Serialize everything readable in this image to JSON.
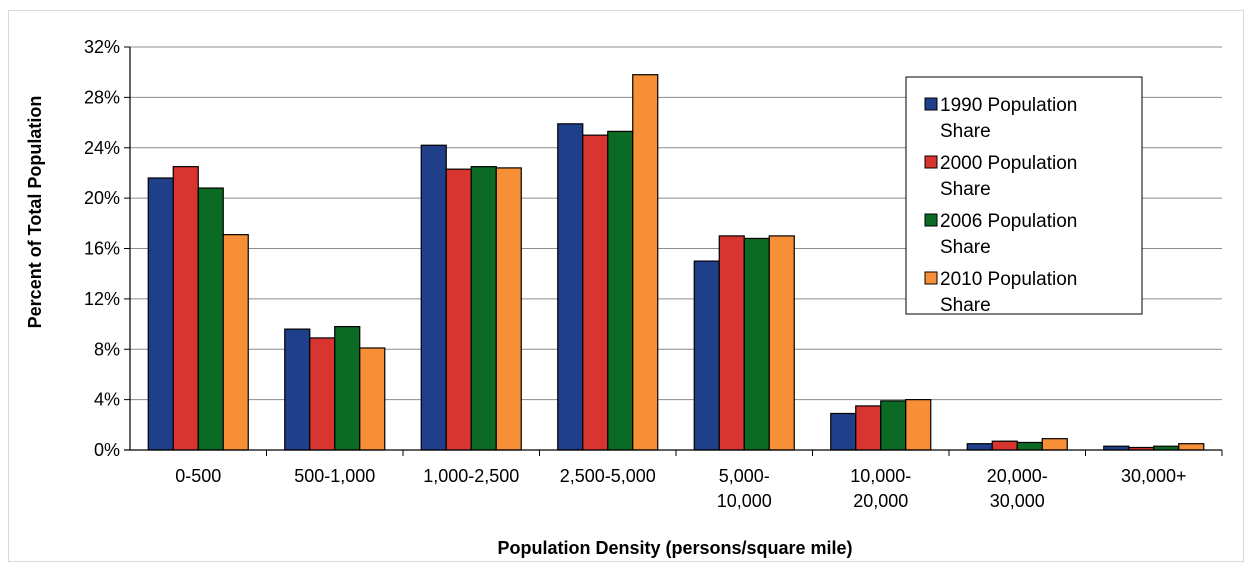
{
  "chart_data": {
    "type": "bar",
    "title": "",
    "xlabel": "Population Density (persons/square mile)",
    "ylabel": "Percent of Total Population",
    "ylim": [
      0,
      32
    ],
    "y_ticks": [
      0,
      4,
      8,
      12,
      16,
      20,
      24,
      28,
      32
    ],
    "y_tick_labels": [
      "0%",
      "4%",
      "8%",
      "12%",
      "16%",
      "20%",
      "24%",
      "28%",
      "32%"
    ],
    "grid": true,
    "legend_position": "top-right",
    "categories": [
      "0-500",
      "500-1,000",
      "1,000-2,500",
      "2,500-5,000",
      "5,000-10,000",
      "10,000-20,000",
      "20,000-30,000",
      "30,000+"
    ],
    "category_labels": [
      [
        "0-500"
      ],
      [
        "500-1,000"
      ],
      [
        "1,000-2,500"
      ],
      [
        "2,500-5,000"
      ],
      [
        "5,000-",
        "10,000"
      ],
      [
        "10,000-",
        "20,000"
      ],
      [
        "20,000-",
        "30,000"
      ],
      [
        "30,000+"
      ]
    ],
    "series": [
      {
        "name": "1990 Population Share",
        "legend_lines": [
          "1990 Population",
          "Share"
        ],
        "color": "#1f3f8a",
        "values": [
          21.6,
          9.6,
          24.2,
          25.9,
          15.0,
          2.9,
          0.5,
          0.3
        ]
      },
      {
        "name": "2000 Population Share",
        "legend_lines": [
          "2000 Population",
          "Share"
        ],
        "color": "#d93530",
        "values": [
          22.5,
          8.9,
          22.3,
          25.0,
          17.0,
          3.5,
          0.7,
          0.2
        ]
      },
      {
        "name": "2006 Population Share",
        "legend_lines": [
          "2006 Population",
          "Share"
        ],
        "color": "#0b6a24",
        "values": [
          20.8,
          9.8,
          22.5,
          25.3,
          16.8,
          3.9,
          0.6,
          0.3
        ]
      },
      {
        "name": "2010 Population Share",
        "legend_lines": [
          "2010 Population",
          "Share"
        ],
        "color": "#f78f36",
        "values": [
          17.1,
          8.1,
          22.4,
          29.8,
          17.0,
          4.0,
          0.9,
          0.5
        ]
      }
    ]
  }
}
